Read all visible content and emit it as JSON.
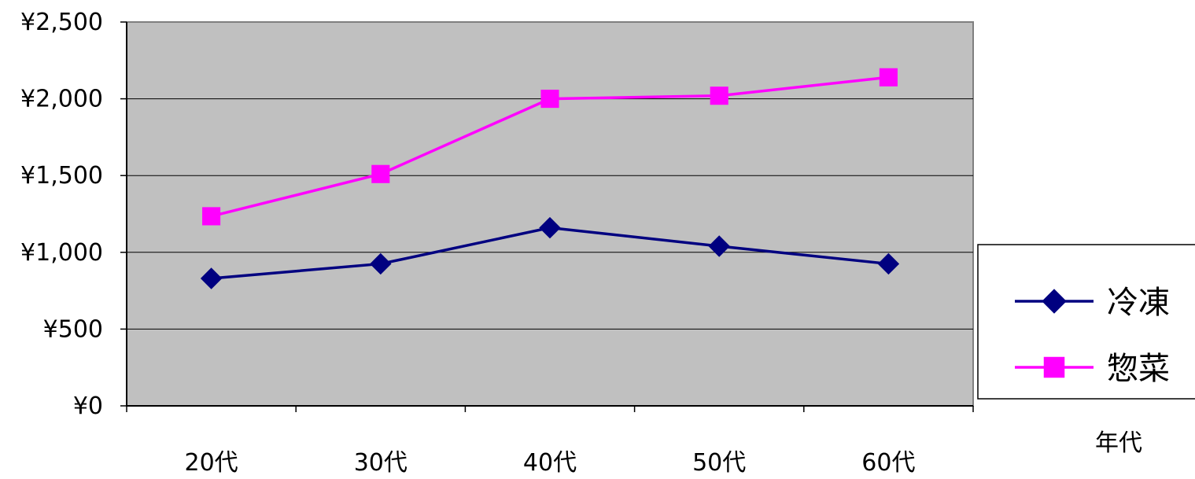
{
  "chart_data": {
    "type": "line",
    "categories": [
      "20代",
      "30代",
      "40代",
      "50代",
      "60代"
    ],
    "series": [
      {
        "name": "冷凍",
        "values": [
          830,
          925,
          1160,
          1040,
          925
        ],
        "color": "#000080",
        "marker": "diamond"
      },
      {
        "name": "惣菜",
        "values": [
          1235,
          1510,
          2000,
          2020,
          2140
        ],
        "color": "#ff00ff",
        "marker": "square"
      }
    ],
    "yticks": [
      "¥0",
      "¥500",
      "¥1,000",
      "¥1,500",
      "¥2,000",
      "¥2,500"
    ],
    "ytick_values": [
      0,
      500,
      1000,
      1500,
      2000,
      2500
    ],
    "ylim": [
      0,
      2500
    ],
    "xlabel": "年代",
    "ylabel": "",
    "title": "",
    "grid": true,
    "legend_position": "right",
    "plot_background": "#c0c0c0"
  }
}
